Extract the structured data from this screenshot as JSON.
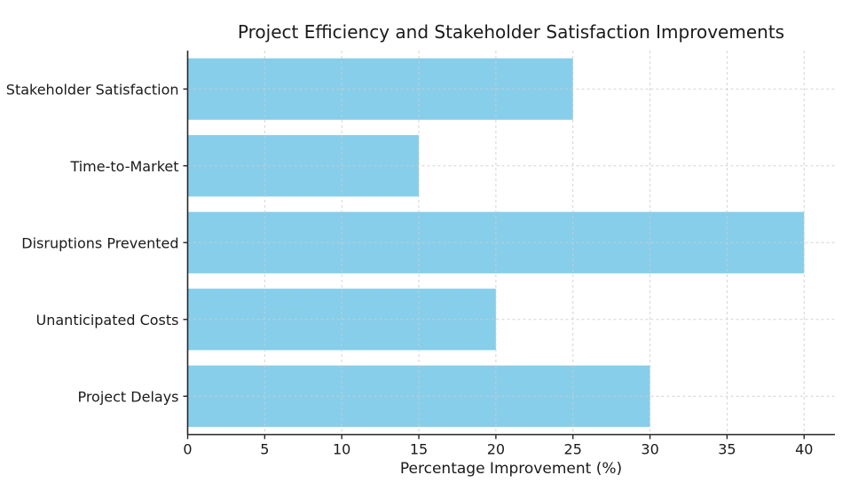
{
  "figure": {
    "background": "#ffffff"
  },
  "chart_data": {
    "type": "bar",
    "orientation": "horizontal",
    "title": "Project Efficiency and Stakeholder Satisfaction Improvements",
    "categories": [
      "Stakeholder Satisfaction",
      "Time-to-Market",
      "Disruptions Prevented",
      "Unanticipated Costs",
      "Project Delays"
    ],
    "values": [
      25,
      15,
      40,
      20,
      30
    ],
    "xlabel": "Percentage Improvement (%)",
    "ylabel": "",
    "xlim": [
      0,
      42
    ],
    "xticks": [
      0,
      5,
      10,
      15,
      20,
      25,
      30,
      35,
      40
    ],
    "bar_color": "#87CEEB",
    "grid": true,
    "grid_style": "dashed",
    "grid_color": "#cccccc",
    "axis_color": "#262626",
    "text_color": "#1a1a1a",
    "legend": false,
    "bar_height_fraction": 0.8
  }
}
